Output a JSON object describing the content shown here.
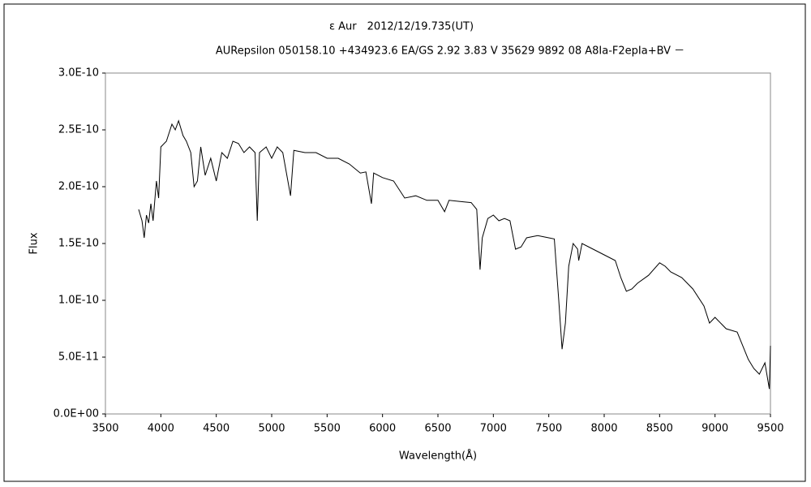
{
  "chart_data": {
    "type": "line",
    "title": "ε Aur　2012/12/19.735(UT)",
    "subtitle": "AURepsilon 050158.10 +434923.6 EA/GS 2.92 3.83 V 35629 9892 08 A8Ⅰa-F2epⅠa+BV －",
    "xlabel": "Wavelength(Å)",
    "ylabel": "Flux",
    "xlim": [
      3500,
      9500
    ],
    "ylim": [
      0,
      3e-10
    ],
    "xticks": [
      3500,
      4000,
      4500,
      5000,
      5500,
      6000,
      6500,
      7000,
      7500,
      8000,
      8500,
      9000,
      9500
    ],
    "yticks": [
      {
        "value": 0,
        "label": "0.0E+00"
      },
      {
        "value": 5e-11,
        "label": "5.0E-11"
      },
      {
        "value": 1e-10,
        "label": "1.0E-10"
      },
      {
        "value": 1.5e-10,
        "label": "1.5E-10"
      },
      {
        "value": 2e-10,
        "label": "2.0E-10"
      },
      {
        "value": 2.5e-10,
        "label": "2.5E-10"
      },
      {
        "value": 3e-10,
        "label": "3.0E-10"
      }
    ],
    "grid": false,
    "x": [
      3800,
      3830,
      3850,
      3870,
      3890,
      3910,
      3930,
      3960,
      3980,
      4000,
      4050,
      4100,
      4130,
      4160,
      4200,
      4230,
      4270,
      4300,
      4330,
      4360,
      4400,
      4450,
      4500,
      4550,
      4600,
      4650,
      4700,
      4750,
      4800,
      4850,
      4870,
      4890,
      4950,
      5000,
      5050,
      5100,
      5170,
      5200,
      5300,
      5400,
      5500,
      5600,
      5700,
      5800,
      5850,
      5900,
      5920,
      6000,
      6100,
      6200,
      6300,
      6400,
      6500,
      6560,
      6600,
      6700,
      6800,
      6850,
      6880,
      6900,
      6950,
      7000,
      7050,
      7100,
      7150,
      7200,
      7250,
      7300,
      7400,
      7500,
      7550,
      7590,
      7620,
      7650,
      7680,
      7720,
      7760,
      7770,
      7800,
      7900,
      8000,
      8100,
      8150,
      8200,
      8250,
      8300,
      8400,
      8500,
      8550,
      8600,
      8700,
      8800,
      8900,
      8950,
      9000,
      9100,
      9200,
      9300,
      9350,
      9400,
      9450,
      9490,
      9500
    ],
    "series": [
      {
        "name": "Flux",
        "color": "#000000",
        "values": [
          1.8e-10,
          1.7e-10,
          1.55e-10,
          1.75e-10,
          1.68e-10,
          1.85e-10,
          1.7e-10,
          2.05e-10,
          1.9e-10,
          2.35e-10,
          2.4e-10,
          2.55e-10,
          2.5e-10,
          2.58e-10,
          2.45e-10,
          2.4e-10,
          2.3e-10,
          2e-10,
          2.05e-10,
          2.35e-10,
          2.1e-10,
          2.25e-10,
          2.05e-10,
          2.3e-10,
          2.25e-10,
          2.4e-10,
          2.38e-10,
          2.3e-10,
          2.35e-10,
          2.3e-10,
          1.7e-10,
          2.3e-10,
          2.35e-10,
          2.25e-10,
          2.35e-10,
          2.3e-10,
          1.92e-10,
          2.32e-10,
          2.3e-10,
          2.3e-10,
          2.25e-10,
          2.25e-10,
          2.2e-10,
          2.12e-10,
          2.13e-10,
          1.85e-10,
          2.12e-10,
          2.08e-10,
          2.05e-10,
          1.9e-10,
          1.92e-10,
          1.88e-10,
          1.88e-10,
          1.78e-10,
          1.88e-10,
          1.87e-10,
          1.86e-10,
          1.8e-10,
          1.27e-10,
          1.55e-10,
          1.72e-10,
          1.75e-10,
          1.7e-10,
          1.72e-10,
          1.7e-10,
          1.45e-10,
          1.47e-10,
          1.55e-10,
          1.57e-10,
          1.55e-10,
          1.54e-10,
          1e-10,
          5.7e-11,
          8e-11,
          1.3e-10,
          1.5e-10,
          1.45e-10,
          1.35e-10,
          1.5e-10,
          1.45e-10,
          1.4e-10,
          1.35e-10,
          1.2e-10,
          1.08e-10,
          1.1e-10,
          1.15e-10,
          1.22e-10,
          1.33e-10,
          1.3e-10,
          1.25e-10,
          1.2e-10,
          1.1e-10,
          9.5e-11,
          8e-11,
          8.5e-11,
          7.5e-11,
          7.2e-11,
          4.8e-11,
          4e-11,
          3.5e-11,
          4.5e-11,
          2.2e-11,
          6e-11
        ]
      }
    ]
  }
}
